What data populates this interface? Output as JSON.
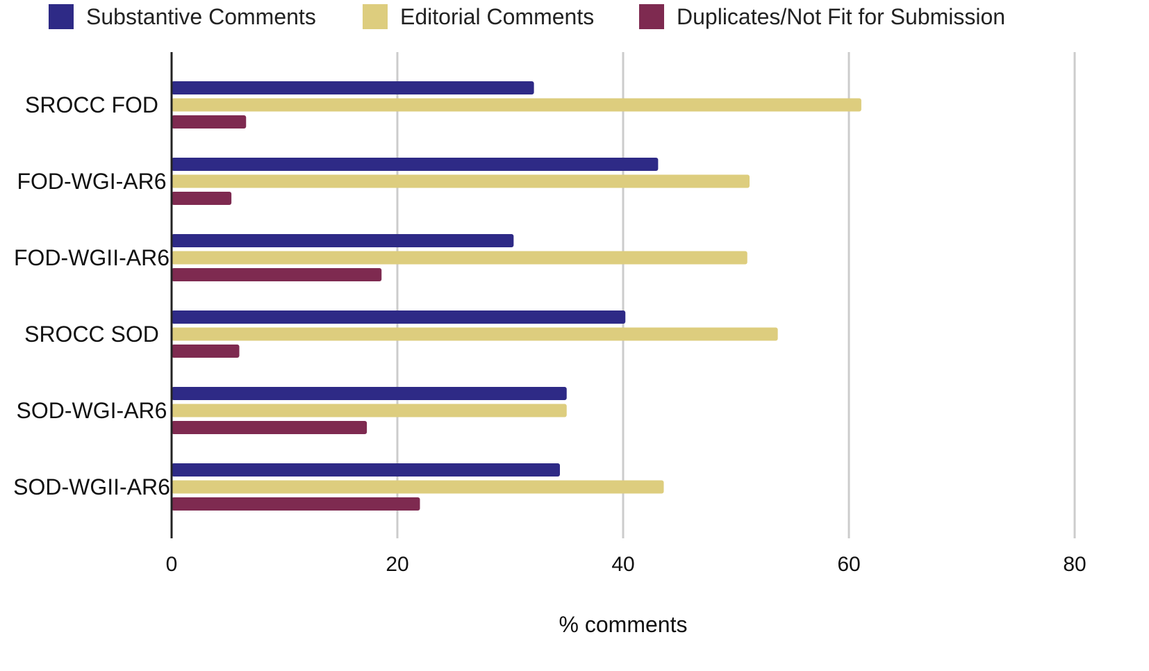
{
  "chart_data": {
    "type": "bar",
    "orientation": "horizontal",
    "categories": [
      "SROCC FOD",
      "FOD-WGI-AR6",
      "FOD-WGII-AR6",
      "SROCC SOD",
      "SOD-WGI-AR6",
      "SOD-WGII-AR6"
    ],
    "series": [
      {
        "name": "Substantive Comments",
        "color": "#2e2a86",
        "values": [
          32.1,
          43.1,
          30.3,
          40.2,
          35.0,
          34.4
        ]
      },
      {
        "name": "Editorial Comments",
        "color": "#ddcd7e",
        "values": [
          61.1,
          51.2,
          51.0,
          53.7,
          35.0,
          43.6
        ]
      },
      {
        "name": "Duplicates/Not Fit for Submission",
        "color": "#7e2a50",
        "values": [
          6.6,
          5.3,
          18.6,
          6.0,
          17.3,
          22.0
        ]
      }
    ],
    "xlabel": "% comments",
    "ylabel": "",
    "xlim": [
      0,
      80
    ],
    "xticks": [
      "0",
      "20",
      "40",
      "60",
      "80"
    ],
    "grid": "vertical",
    "legend": "top"
  }
}
